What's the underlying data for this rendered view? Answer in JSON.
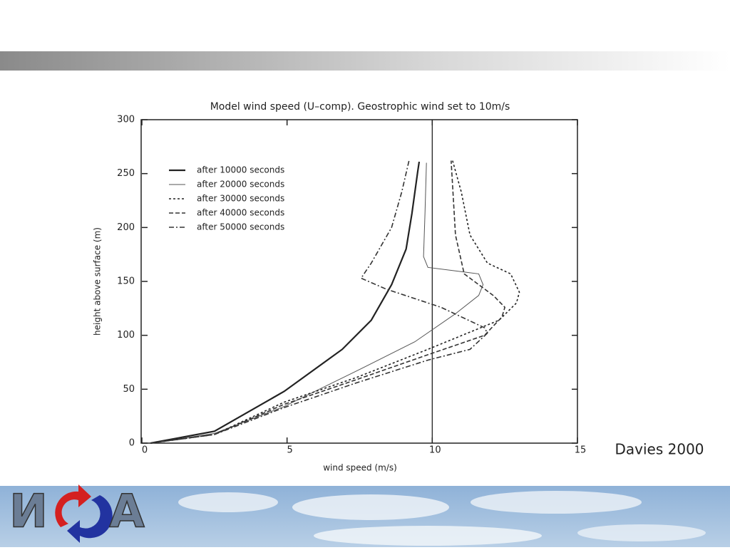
{
  "chart_data": {
    "type": "line",
    "title": "Model wind speed (U–comp). Geostrophic wind set to 10m/s",
    "x_label": "wind speed (m/s)",
    "y_label": "height above surface (m)",
    "xlim": [
      0,
      15
    ],
    "xticks": [
      0,
      5,
      10,
      15
    ],
    "ylim": [
      0,
      300
    ],
    "yticks": [
      0,
      50,
      100,
      150,
      200,
      250,
      300
    ],
    "reference_x": 10,
    "legend": "upper left",
    "series": [
      {
        "name": "after  10000 seconds",
        "color": "#222222",
        "style": "solid",
        "x": [
          0.3,
          2.5,
          4.9,
          6.9,
          7.9,
          8.6,
          9.1,
          9.3,
          9.5,
          9.55
        ],
        "values": [
          0,
          11,
          48,
          87,
          114,
          147,
          180,
          213,
          252,
          261
        ]
      },
      {
        "name": "after  20000 seconds",
        "color": "#555555",
        "style": "thin",
        "x": [
          0.3,
          2.5,
          4.9,
          7.4,
          9.4,
          10.8,
          11.6,
          11.75,
          11.6,
          9.85,
          9.7,
          9.75,
          9.8
        ],
        "values": [
          0,
          9,
          34,
          67,
          94,
          120,
          137,
          147,
          157,
          163,
          173,
          213,
          260
        ]
      },
      {
        "name": "after  30000 seconds",
        "color": "#222222",
        "style": "dotted",
        "x": [
          0.3,
          2.5,
          4.9,
          7.4,
          9.85,
          12.3,
          12.9,
          13.0,
          12.7,
          11.9,
          11.3,
          11.0,
          10.7
        ],
        "values": [
          0,
          8,
          38,
          61,
          87,
          114,
          130,
          140,
          157,
          167,
          193,
          233,
          262
        ]
      },
      {
        "name": "after  40000 seconds",
        "color": "#333333",
        "style": "dashed",
        "x": [
          0.3,
          2.5,
          4.9,
          7.4,
          9.85,
          11.8,
          12.4,
          12.5,
          12.1,
          11.1,
          10.8,
          10.7,
          10.65
        ],
        "values": [
          0,
          8,
          36,
          59,
          82,
          100,
          117,
          126,
          137,
          157,
          193,
          239,
          262
        ]
      },
      {
        "name": "after  50000 seconds",
        "color": "#333333",
        "style": "dashdot",
        "x": [
          0.3,
          2.5,
          4.9,
          7.4,
          9.85,
          11.3,
          11.9,
          11.8,
          10.3,
          8.4,
          7.55,
          7.9,
          8.6,
          8.95,
          9.2
        ],
        "values": [
          0,
          8,
          33,
          56,
          77,
          87,
          102,
          107,
          126,
          143,
          153,
          167,
          200,
          233,
          262
        ]
      }
    ]
  },
  "annotation": "Davies 2000",
  "footer": {
    "logo_left": "И",
    "logo_right": "А"
  }
}
